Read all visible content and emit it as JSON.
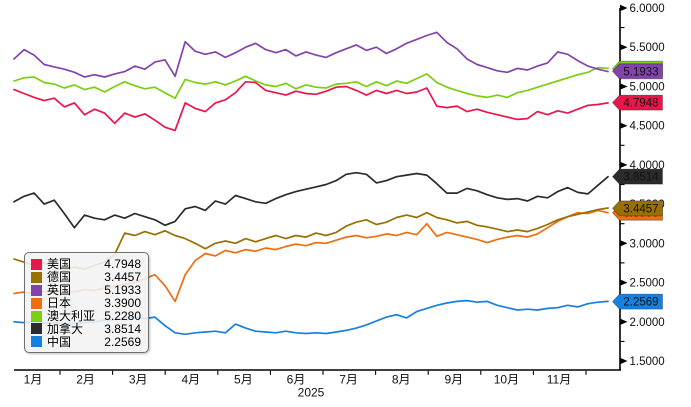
{
  "chart_data": {
    "type": "line",
    "title": "",
    "legend_position": "bottom-left",
    "grid": false,
    "x_axis": {
      "labels": [
        "1月",
        "2月",
        "3月",
        "4月",
        "5月",
        "6月",
        "7月",
        "8月",
        "9月",
        "10月",
        "11月"
      ],
      "year_label": "2025"
    },
    "y_axis": {
      "min": 1.5,
      "max": 6.0,
      "major_step": 0.5,
      "minor_step": 0.25,
      "tick_labels": [
        "6.0000",
        "5.5000",
        "5.0000",
        "4.5000",
        "4.0000",
        "3.5000",
        "3.0000",
        "2.5000",
        "2.0000",
        "1.5000"
      ]
    },
    "z_order": [
      6,
      5,
      4,
      3,
      2,
      1,
      0
    ],
    "series": [
      {
        "key": "us",
        "name": "美国",
        "color": "#e9164a",
        "value_label": "4.7948",
        "values": [
          4.96,
          4.91,
          4.86,
          4.82,
          4.85,
          4.74,
          4.79,
          4.64,
          4.71,
          4.66,
          4.53,
          4.66,
          4.61,
          4.65,
          4.57,
          4.48,
          4.44,
          4.79,
          4.72,
          4.68,
          4.79,
          4.83,
          4.92,
          5.06,
          5.05,
          4.95,
          4.92,
          4.89,
          4.94,
          4.91,
          4.9,
          4.94,
          4.99,
          5.0,
          4.95,
          4.89,
          4.95,
          4.91,
          4.95,
          4.91,
          4.93,
          4.98,
          4.75,
          4.73,
          4.75,
          4.68,
          4.71,
          4.67,
          4.64,
          4.61,
          4.58,
          4.59,
          4.68,
          4.64,
          4.69,
          4.66,
          4.71,
          4.76,
          4.77,
          4.79
        ]
      },
      {
        "key": "de",
        "name": "德国",
        "color": "#9a7000",
        "value_label": "3.4457",
        "values": [
          2.8,
          2.76,
          2.72,
          2.75,
          2.7,
          2.66,
          2.7,
          2.67,
          2.72,
          2.76,
          2.86,
          3.13,
          3.1,
          3.15,
          3.11,
          3.16,
          3.1,
          3.06,
          3.0,
          2.93,
          3.0,
          3.03,
          3.0,
          3.06,
          3.02,
          3.06,
          3.1,
          3.06,
          3.1,
          3.08,
          3.13,
          3.1,
          3.14,
          3.22,
          3.27,
          3.3,
          3.24,
          3.27,
          3.33,
          3.36,
          3.33,
          3.39,
          3.33,
          3.3,
          3.26,
          3.28,
          3.23,
          3.21,
          3.18,
          3.15,
          3.17,
          3.15,
          3.19,
          3.24,
          3.3,
          3.34,
          3.37,
          3.4,
          3.43,
          3.45
        ]
      },
      {
        "key": "uk",
        "name": "英国",
        "color": "#8244ab",
        "value_label": "5.1933",
        "values": [
          5.35,
          5.47,
          5.4,
          5.28,
          5.25,
          5.22,
          5.18,
          5.12,
          5.15,
          5.12,
          5.16,
          5.19,
          5.26,
          5.22,
          5.31,
          5.34,
          5.13,
          5.57,
          5.45,
          5.41,
          5.44,
          5.37,
          5.43,
          5.5,
          5.55,
          5.47,
          5.43,
          5.47,
          5.39,
          5.44,
          5.4,
          5.37,
          5.43,
          5.48,
          5.53,
          5.46,
          5.5,
          5.42,
          5.48,
          5.55,
          5.6,
          5.65,
          5.69,
          5.56,
          5.48,
          5.35,
          5.28,
          5.24,
          5.2,
          5.18,
          5.23,
          5.21,
          5.26,
          5.3,
          5.44,
          5.41,
          5.33,
          5.26,
          5.22,
          5.19
        ]
      },
      {
        "key": "jp",
        "name": "日本",
        "color": "#ee6f10",
        "value_label": "3.3900",
        "values": [
          2.36,
          2.38,
          2.36,
          2.39,
          2.37,
          2.4,
          2.38,
          2.41,
          2.4,
          2.43,
          2.45,
          2.48,
          2.5,
          2.55,
          2.6,
          2.46,
          2.26,
          2.6,
          2.78,
          2.87,
          2.84,
          2.91,
          2.88,
          2.92,
          2.9,
          2.94,
          2.92,
          2.96,
          2.99,
          2.97,
          3.01,
          3.0,
          3.04,
          3.08,
          3.1,
          3.07,
          3.09,
          3.12,
          3.1,
          3.14,
          3.11,
          3.25,
          3.09,
          3.14,
          3.11,
          3.08,
          3.05,
          3.01,
          3.05,
          3.08,
          3.1,
          3.08,
          3.12,
          3.2,
          3.28,
          3.34,
          3.39,
          3.38,
          3.42,
          3.39
        ]
      },
      {
        "key": "au",
        "name": "澳大利亚",
        "color": "#79cf10",
        "value_label": "5.2280",
        "values": [
          5.07,
          5.11,
          5.12,
          5.05,
          5.03,
          4.98,
          5.02,
          4.96,
          4.99,
          4.93,
          5.0,
          5.06,
          5.01,
          4.97,
          4.99,
          4.92,
          4.85,
          5.09,
          5.05,
          5.03,
          5.06,
          5.02,
          5.07,
          5.13,
          5.07,
          5.02,
          5.0,
          5.04,
          4.97,
          5.02,
          4.99,
          4.98,
          5.03,
          5.04,
          5.06,
          5.0,
          5.06,
          5.01,
          5.07,
          5.04,
          5.1,
          5.16,
          5.05,
          4.99,
          4.95,
          4.91,
          4.88,
          4.86,
          4.89,
          4.86,
          4.92,
          4.95,
          4.99,
          5.03,
          5.07,
          5.11,
          5.15,
          5.18,
          5.24,
          5.23
        ]
      },
      {
        "key": "ca",
        "name": "加拿大",
        "color": "#2b2b2b",
        "value_label": "3.8514",
        "values": [
          3.53,
          3.6,
          3.64,
          3.5,
          3.55,
          3.38,
          3.2,
          3.36,
          3.32,
          3.3,
          3.36,
          3.32,
          3.38,
          3.34,
          3.3,
          3.23,
          3.28,
          3.44,
          3.47,
          3.42,
          3.54,
          3.5,
          3.61,
          3.57,
          3.53,
          3.51,
          3.57,
          3.62,
          3.66,
          3.69,
          3.72,
          3.75,
          3.8,
          3.88,
          3.9,
          3.88,
          3.77,
          3.8,
          3.85,
          3.87,
          3.89,
          3.87,
          3.76,
          3.64,
          3.64,
          3.7,
          3.67,
          3.62,
          3.58,
          3.56,
          3.57,
          3.54,
          3.6,
          3.58,
          3.66,
          3.71,
          3.65,
          3.63,
          3.74,
          3.85
        ]
      },
      {
        "key": "cn",
        "name": "中国",
        "color": "#1680e0",
        "value_label": "2.2569",
        "values": [
          2.0,
          1.99,
          2.0,
          1.98,
          1.99,
          1.97,
          1.98,
          1.99,
          2.0,
          2.02,
          2.03,
          2.05,
          2.06,
          2.04,
          2.06,
          1.95,
          1.86,
          1.84,
          1.86,
          1.87,
          1.88,
          1.86,
          1.97,
          1.92,
          1.88,
          1.87,
          1.86,
          1.88,
          1.86,
          1.85,
          1.86,
          1.85,
          1.87,
          1.89,
          1.92,
          1.96,
          2.01,
          2.06,
          2.09,
          2.05,
          2.13,
          2.17,
          2.21,
          2.24,
          2.26,
          2.27,
          2.25,
          2.26,
          2.21,
          2.18,
          2.15,
          2.16,
          2.15,
          2.17,
          2.18,
          2.21,
          2.19,
          2.23,
          2.25,
          2.26
        ]
      }
    ]
  }
}
